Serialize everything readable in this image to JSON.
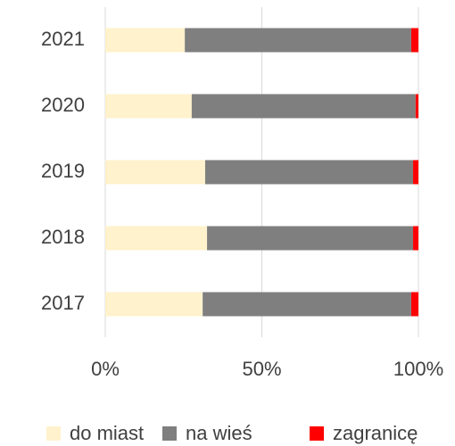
{
  "chart_data": {
    "type": "stacked_barh",
    "categories": [
      "2021",
      "2020",
      "2019",
      "2018",
      "2017"
    ],
    "series": [
      {
        "name": "do miast",
        "color": "#fff2cc",
        "values": [
          25.4,
          27.6,
          31.9,
          32.5,
          31.1
        ]
      },
      {
        "name": "na wieś",
        "color": "#7f7f7f",
        "values": [
          72.3,
          71.5,
          66.4,
          65.8,
          66.6
        ]
      },
      {
        "name": "zagranicę",
        "color": "#ff0000",
        "values": [
          2.3,
          0.9,
          1.7,
          1.7,
          2.3
        ]
      }
    ],
    "xlim": [
      0,
      100
    ],
    "xticks": [
      {
        "value": 0,
        "label": "0%"
      },
      {
        "value": 50,
        "label": "50%"
      },
      {
        "value": 100,
        "label": "100%"
      }
    ],
    "grid": true,
    "legend": "bottom"
  }
}
